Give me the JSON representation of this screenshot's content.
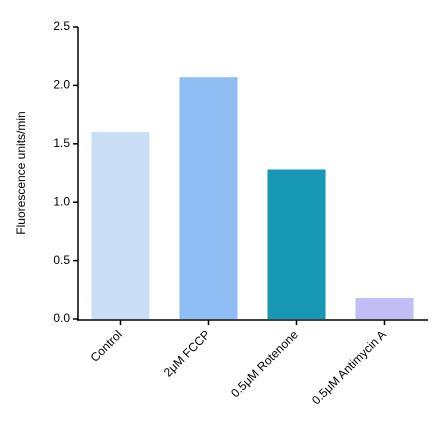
{
  "chart_data": {
    "type": "bar",
    "ylabel": "Fluorescence units/min",
    "categories": [
      "Control",
      "2μM FCCP",
      "0.5μM Rotenone",
      "0.5μM Antimycin A"
    ],
    "values": [
      1.6,
      2.07,
      1.28,
      0.18
    ],
    "colors": [
      "#c9ddf5",
      "#8fbef5",
      "#1799b5",
      "#c3bdf7"
    ],
    "ylim": [
      0,
      2.5
    ],
    "yticks": [
      {
        "value": 0,
        "label": "0.0"
      },
      0.5,
      {
        "value": 1,
        "label": "1.0"
      },
      1.5,
      {
        "value": 2,
        "label": "2.0"
      },
      2.5
    ],
    "grid": false
  }
}
